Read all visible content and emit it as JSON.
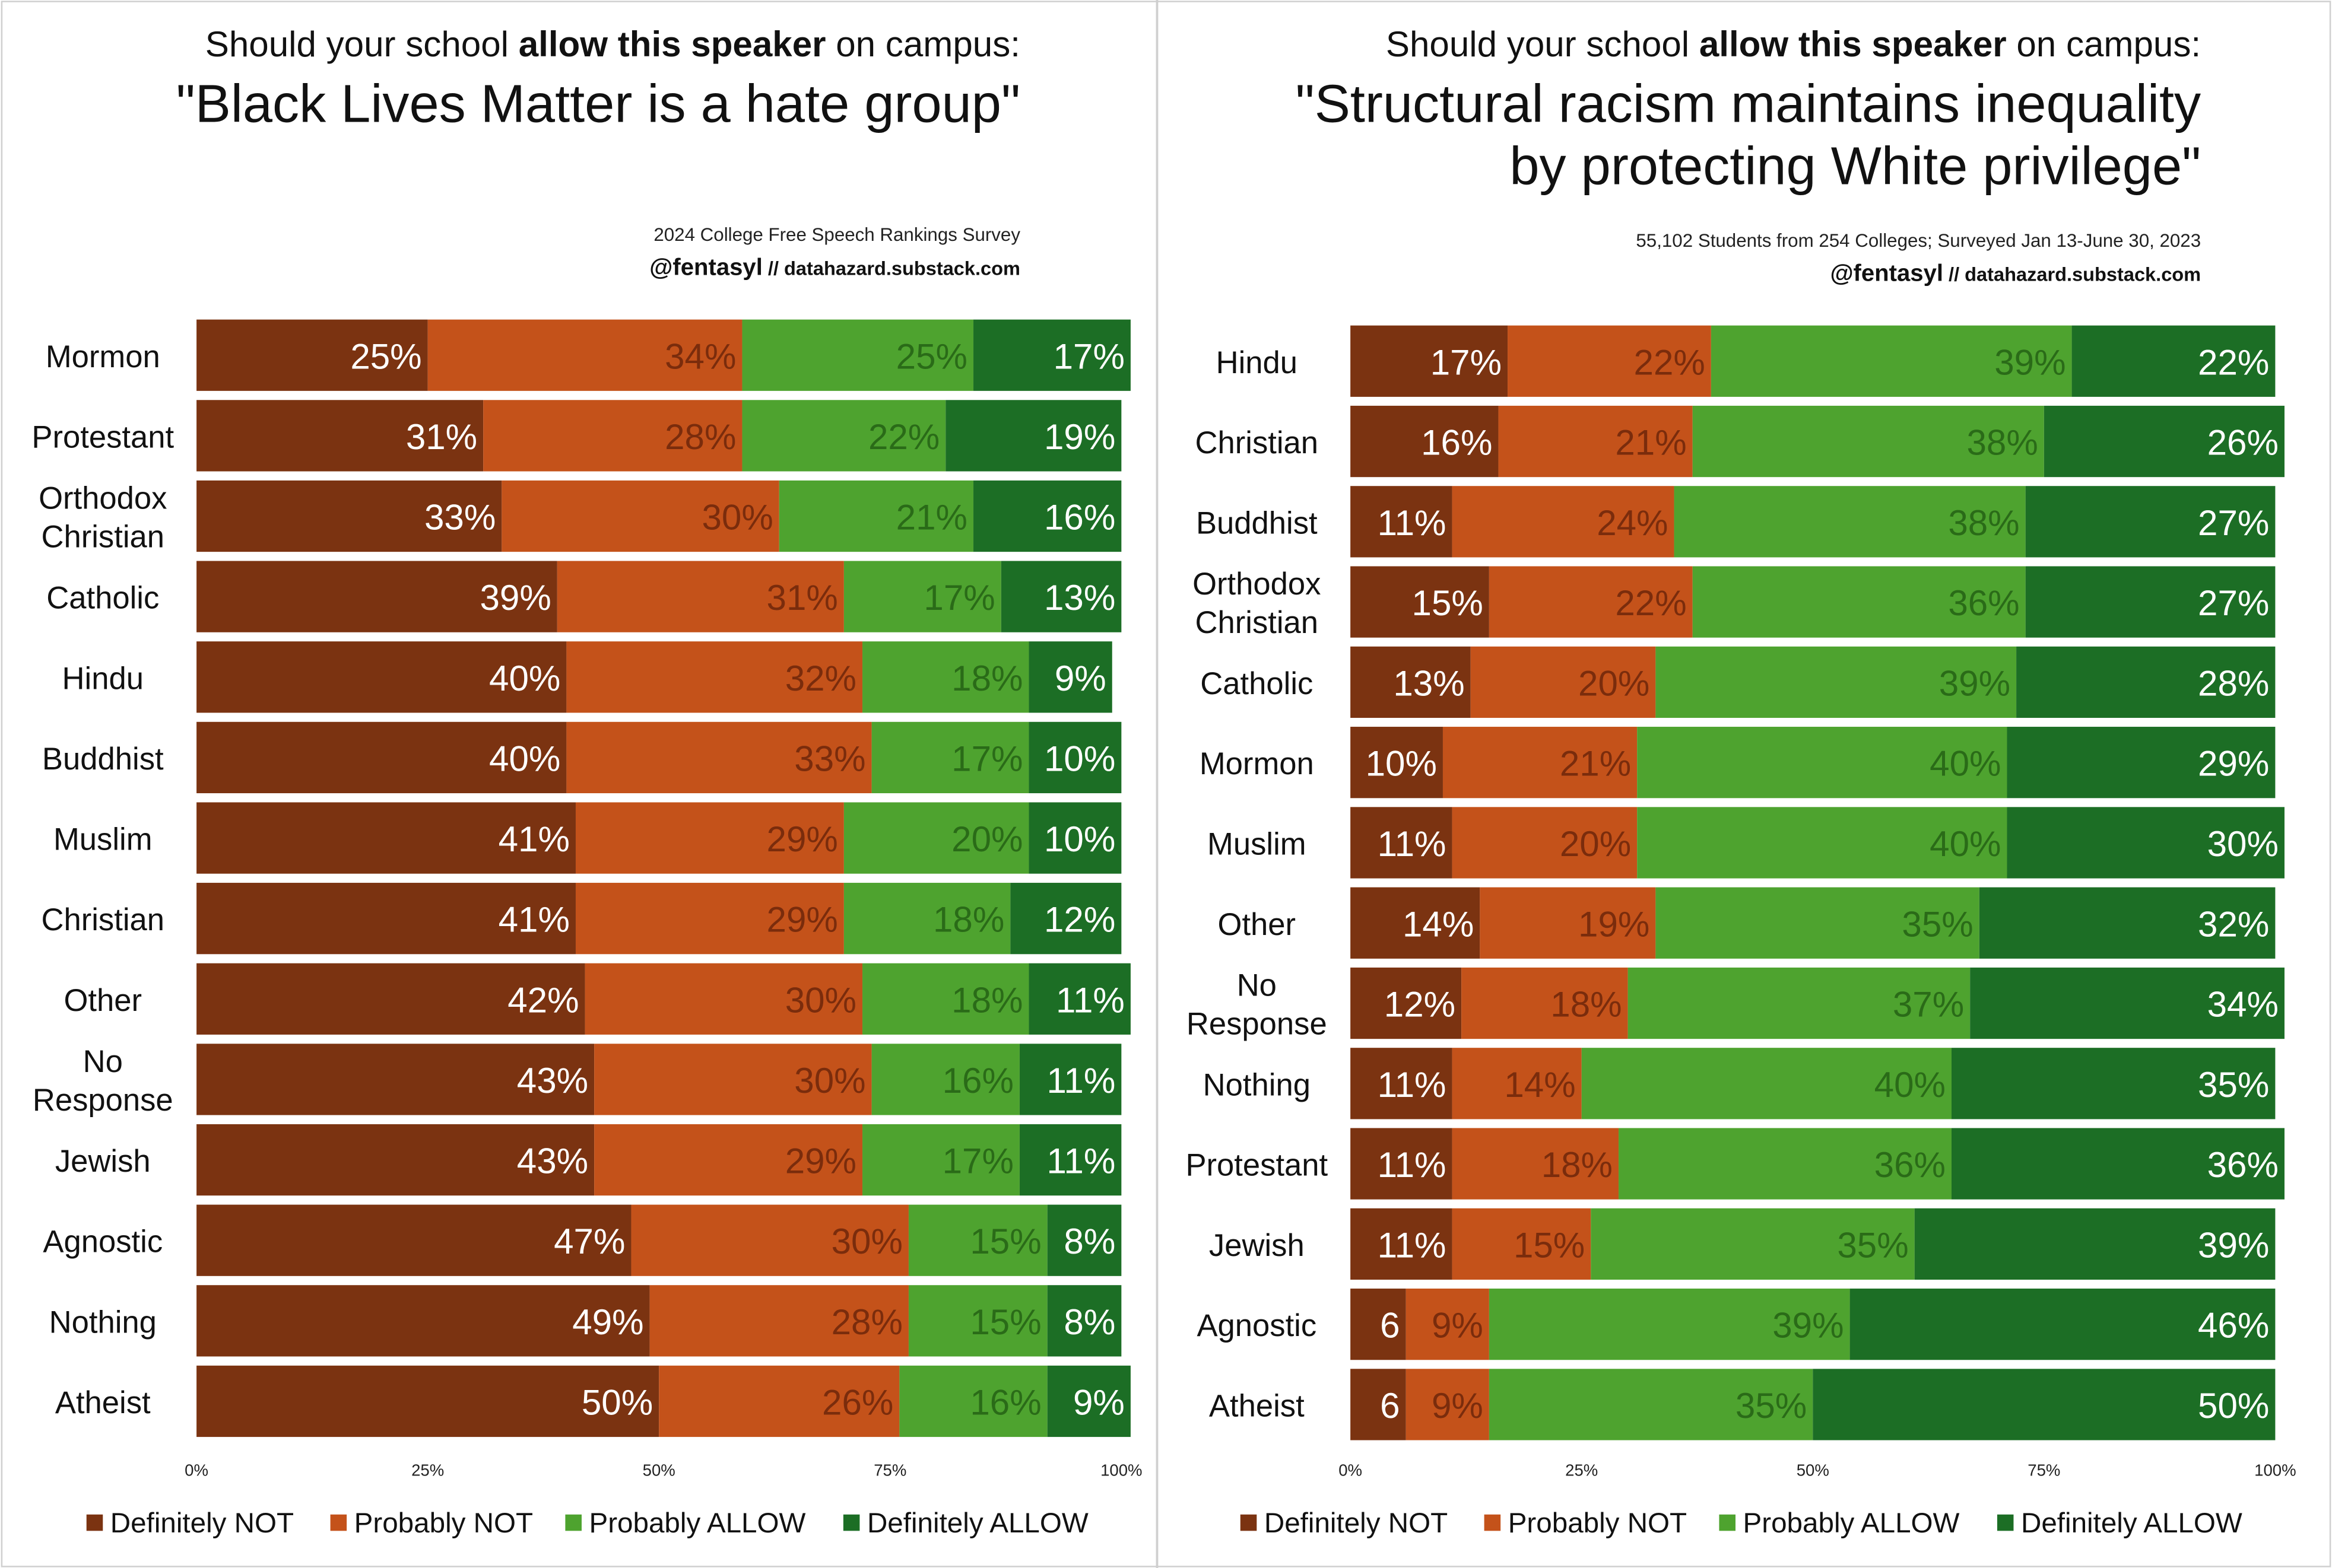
{
  "colors": {
    "definitely_not": "#7b3311",
    "probably_not": "#c4521a",
    "probably_allow": "#4ea32f",
    "definitely_allow": "#1c6e25"
  },
  "legend": [
    "Definitely NOT",
    "Probably NOT",
    "Probably ALLOW",
    "Definitely ALLOW"
  ],
  "x_ticks": [
    "0%",
    "25%",
    "50%",
    "75%",
    "100%"
  ],
  "chart_data": [
    {
      "type": "bar",
      "orientation": "horizontal",
      "stacked": true,
      "title_prefix": "Should your school ",
      "title_bold": "allow this speaker",
      "title_suffix": " on campus:",
      "subtitle_lines": [
        "\"Black Lives Matter is a hate group\""
      ],
      "source_line": "2024 College Free Speech Rankings Survey",
      "credit_handle": "@fentasyl",
      "credit_site": " // datahazard.substack.com",
      "xlim": [
        0,
        100
      ],
      "grid": false,
      "legend_position": "bottom",
      "categories": [
        [
          "Mormon"
        ],
        [
          "Protestant"
        ],
        [
          "Orthodox",
          "Christian"
        ],
        [
          "Catholic"
        ],
        [
          "Hindu"
        ],
        [
          "Buddhist"
        ],
        [
          "Muslim"
        ],
        [
          "Christian"
        ],
        [
          "Other"
        ],
        [
          "No",
          "Response"
        ],
        [
          "Jewish"
        ],
        [
          "Agnostic"
        ],
        [
          "Nothing"
        ],
        [
          "Atheist"
        ]
      ],
      "series": [
        {
          "name": "Definitely NOT",
          "values": [
            25,
            31,
            33,
            39,
            40,
            40,
            41,
            41,
            42,
            43,
            43,
            47,
            49,
            50
          ]
        },
        {
          "name": "Probably NOT",
          "values": [
            34,
            28,
            30,
            31,
            32,
            33,
            29,
            29,
            30,
            30,
            29,
            30,
            28,
            26
          ]
        },
        {
          "name": "Probably ALLOW",
          "values": [
            25,
            22,
            21,
            17,
            18,
            17,
            20,
            18,
            18,
            16,
            17,
            15,
            15,
            16
          ]
        },
        {
          "name": "Definitely ALLOW",
          "values": [
            17,
            19,
            16,
            13,
            9,
            10,
            10,
            12,
            11,
            11,
            11,
            8,
            8,
            9
          ]
        }
      ],
      "labels": [
        [
          "25%",
          "34%",
          "25%",
          "17%"
        ],
        [
          "31%",
          "28%",
          "22%",
          "19%"
        ],
        [
          "33%",
          "30%",
          "21%",
          "16%"
        ],
        [
          "39%",
          "31%",
          "17%",
          "13%"
        ],
        [
          "40%",
          "32%",
          "18%",
          "9%"
        ],
        [
          "40%",
          "33%",
          "17%",
          "10%"
        ],
        [
          "41%",
          "29%",
          "20%",
          "10%"
        ],
        [
          "41%",
          "29%",
          "18%",
          "12%"
        ],
        [
          "42%",
          "30%",
          "18%",
          "11%"
        ],
        [
          "43%",
          "30%",
          "16%",
          "11%"
        ],
        [
          "43%",
          "29%",
          "17%",
          "11%"
        ],
        [
          "47%",
          "30%",
          "15%",
          "8%"
        ],
        [
          "49%",
          "28%",
          "15%",
          "8%"
        ],
        [
          "50%",
          "26%",
          "16%",
          "9%"
        ]
      ]
    },
    {
      "type": "bar",
      "orientation": "horizontal",
      "stacked": true,
      "title_prefix": "Should your school ",
      "title_bold": "allow this speaker",
      "title_suffix": " on campus:",
      "subtitle_lines": [
        "\"Structural racism maintains inequality",
        "by protecting White privilege\""
      ],
      "source_line": "55,102 Students from 254 Colleges; Surveyed Jan 13-June 30, 2023",
      "credit_handle": "@fentasyl",
      "credit_site": " // datahazard.substack.com",
      "xlim": [
        0,
        100
      ],
      "grid": false,
      "legend_position": "bottom",
      "categories": [
        [
          "Hindu"
        ],
        [
          "Christian"
        ],
        [
          "Buddhist"
        ],
        [
          "Orthodox",
          "Christian"
        ],
        [
          "Catholic"
        ],
        [
          "Mormon"
        ],
        [
          "Muslim"
        ],
        [
          "Other"
        ],
        [
          "No",
          "Response"
        ],
        [
          "Nothing"
        ],
        [
          "Protestant"
        ],
        [
          "Jewish"
        ],
        [
          "Agnostic"
        ],
        [
          "Atheist"
        ]
      ],
      "series": [
        {
          "name": "Definitely NOT",
          "values": [
            17,
            16,
            11,
            15,
            13,
            10,
            11,
            14,
            12,
            11,
            11,
            11,
            6,
            6
          ]
        },
        {
          "name": "Probably NOT",
          "values": [
            22,
            21,
            24,
            22,
            20,
            21,
            20,
            19,
            18,
            14,
            18,
            15,
            9,
            9
          ]
        },
        {
          "name": "Probably ALLOW",
          "values": [
            39,
            38,
            38,
            36,
            39,
            40,
            40,
            35,
            37,
            40,
            36,
            35,
            39,
            35
          ]
        },
        {
          "name": "Definitely ALLOW",
          "values": [
            22,
            26,
            27,
            27,
            28,
            29,
            30,
            32,
            34,
            35,
            36,
            39,
            46,
            50
          ]
        }
      ],
      "labels": [
        [
          "17%",
          "22%",
          "39%",
          "22%"
        ],
        [
          "16%",
          "21%",
          "38%",
          "26%"
        ],
        [
          "11%",
          "24%",
          "38%",
          "27%"
        ],
        [
          "15%",
          "22%",
          "36%",
          "27%"
        ],
        [
          "13%",
          "20%",
          "39%",
          "28%"
        ],
        [
          "10%",
          "21%",
          "40%",
          "29%"
        ],
        [
          "11%",
          "20%",
          "40%",
          "30%"
        ],
        [
          "14%",
          "19%",
          "35%",
          "32%"
        ],
        [
          "12%",
          "18%",
          "37%",
          "34%"
        ],
        [
          "11%",
          "14%",
          "40%",
          "35%"
        ],
        [
          "11%",
          "18%",
          "36%",
          "36%"
        ],
        [
          "11%",
          "15%",
          "35%",
          "39%"
        ],
        [
          "6",
          "9%",
          "39%",
          "46%"
        ],
        [
          "6",
          "9%",
          "35%",
          "50%"
        ]
      ]
    }
  ]
}
